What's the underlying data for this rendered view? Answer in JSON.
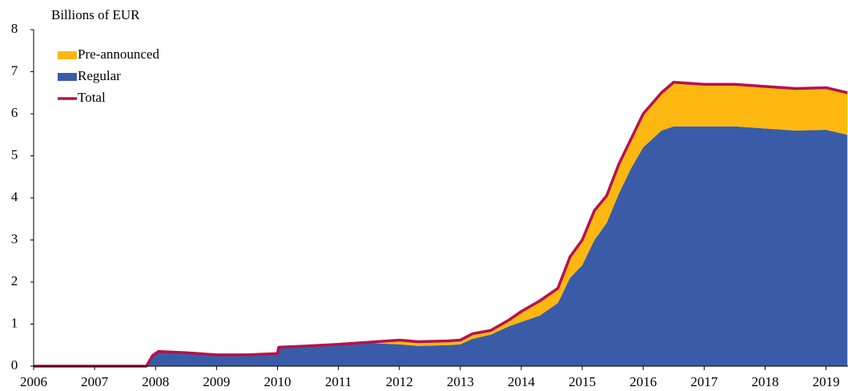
{
  "chart_data": {
    "type": "stacked-area",
    "ylabel": "Billions of EUR",
    "x": [
      2006,
      2007.85,
      2007.95,
      2008.05,
      2008.5,
      2009,
      2009.5,
      2010,
      2010.02,
      2010.5,
      2011,
      2011.5,
      2012,
      2012.3,
      2012.8,
      2013,
      2013.2,
      2013.5,
      2013.8,
      2014,
      2014.3,
      2014.6,
      2014.8,
      2015,
      2015.2,
      2015.4,
      2015.6,
      2015.8,
      2016,
      2016.3,
      2016.5,
      2017,
      2017.5,
      2018,
      2018.5,
      2019,
      2019.35
    ],
    "series": [
      {
        "name": "Regular",
        "color": "#3a5ca8",
        "values": [
          0,
          0,
          0.25,
          0.35,
          0.32,
          0.27,
          0.27,
          0.3,
          0.45,
          0.48,
          0.52,
          0.55,
          0.52,
          0.48,
          0.5,
          0.52,
          0.65,
          0.75,
          0.95,
          1.05,
          1.2,
          1.5,
          2.1,
          2.4,
          3.0,
          3.4,
          4.1,
          4.7,
          5.2,
          5.6,
          5.7,
          5.7,
          5.7,
          5.65,
          5.6,
          5.62,
          5.5
        ]
      },
      {
        "name": "Pre-announced",
        "color": "#fcb711",
        "values": [
          0,
          0,
          0,
          0,
          0,
          0,
          0,
          0,
          0,
          0,
          0,
          0.02,
          0.1,
          0.1,
          0.1,
          0.1,
          0.12,
          0.1,
          0.15,
          0.25,
          0.35,
          0.35,
          0.5,
          0.6,
          0.7,
          0.65,
          0.7,
          0.7,
          0.8,
          0.9,
          1.05,
          1.0,
          1.0,
          1.0,
          1.0,
          1.0,
          1.0
        ]
      },
      {
        "name": "Total",
        "color": "#b5124d",
        "values": [
          0,
          0,
          0.25,
          0.35,
          0.32,
          0.27,
          0.27,
          0.3,
          0.45,
          0.48,
          0.52,
          0.57,
          0.62,
          0.58,
          0.6,
          0.62,
          0.77,
          0.85,
          1.1,
          1.3,
          1.55,
          1.85,
          2.6,
          3.0,
          3.7,
          4.05,
          4.8,
          5.4,
          6.0,
          6.5,
          6.75,
          6.7,
          6.7,
          6.65,
          6.6,
          6.62,
          6.5
        ]
      }
    ],
    "xlim": [
      2006,
      2019.36
    ],
    "xticks": [
      2006,
      2007,
      2008,
      2009,
      2010,
      2011,
      2012,
      2013,
      2014,
      2015,
      2016,
      2017,
      2018,
      2019
    ],
    "ylim": [
      0,
      8
    ],
    "yticks": [
      0,
      1,
      2,
      3,
      4,
      5,
      6,
      7,
      8
    ],
    "legend": "top-left"
  }
}
